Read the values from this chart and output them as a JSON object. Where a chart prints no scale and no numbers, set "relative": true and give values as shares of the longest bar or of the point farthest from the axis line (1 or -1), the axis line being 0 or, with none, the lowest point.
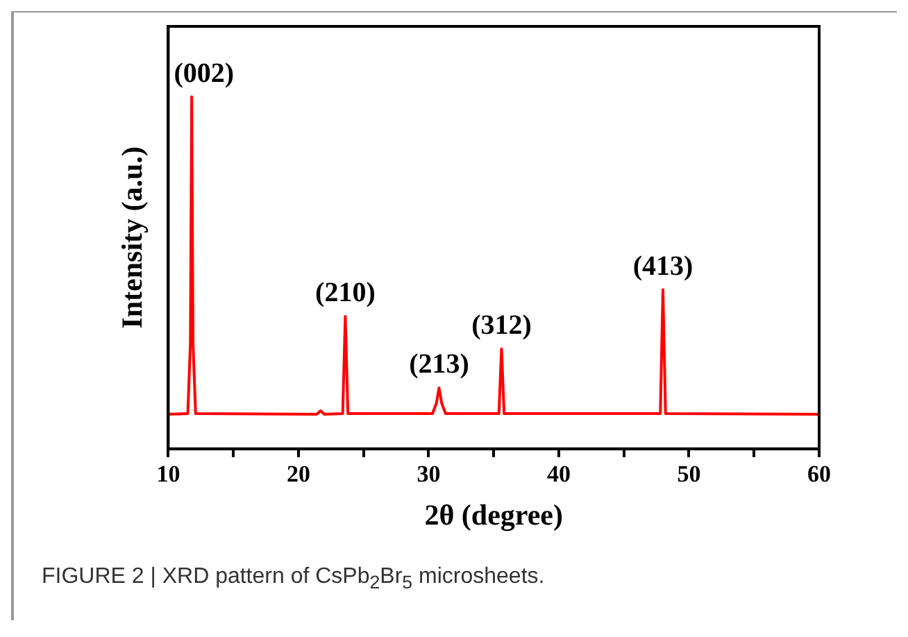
{
  "chart_data": {
    "type": "line",
    "relative": true,
    "xlabel": "2θ (degree)",
    "ylabel": "Intensity (a.u.)",
    "xlim": [
      10,
      60
    ],
    "xticks": [
      10,
      {
        "value": 15,
        "label": null
      },
      20,
      {
        "value": 25,
        "label": null
      },
      30,
      {
        "value": 35,
        "label": null
      },
      40,
      {
        "value": 45,
        "label": null
      },
      50,
      {
        "value": 55,
        "label": null
      },
      60
    ],
    "grid": false,
    "legend": false,
    "marker": "none",
    "line_style": "solid",
    "series": [
      {
        "color": "#ff0000",
        "x": [
          10,
          11.5,
          11.7,
          11.8,
          11.9,
          12.1,
          21.4,
          21.7,
          22.0,
          23.4,
          23.6,
          23.8,
          30.3,
          30.6,
          30.8,
          31.0,
          31.3,
          35.4,
          35.6,
          35.8,
          47.8,
          48.0,
          48.2,
          60
        ],
        "values": [
          0.098,
          0.1,
          0.3,
          1.0,
          0.3,
          0.1,
          0.098,
          0.108,
          0.098,
          0.1,
          0.376,
          0.1,
          0.1,
          0.13,
          0.173,
          0.13,
          0.1,
          0.1,
          0.284,
          0.1,
          0.1,
          0.452,
          0.1,
          0.098
        ]
      }
    ],
    "annotations": [
      {
        "text": "(002)",
        "x": 11.8,
        "y": 1.0
      },
      {
        "text": "(210)",
        "x": 23.6,
        "y": 0.376
      },
      {
        "text": "(213)",
        "x": 30.8,
        "y": 0.173
      },
      {
        "text": "(312)",
        "x": 35.6,
        "y": 0.284
      },
      {
        "text": "(413)",
        "x": 48.0,
        "y": 0.452
      },
      "FIGURE 2 | XRD pattern of CsPb$_{2}$Br$_{5}$ microsheets."
    ]
  }
}
